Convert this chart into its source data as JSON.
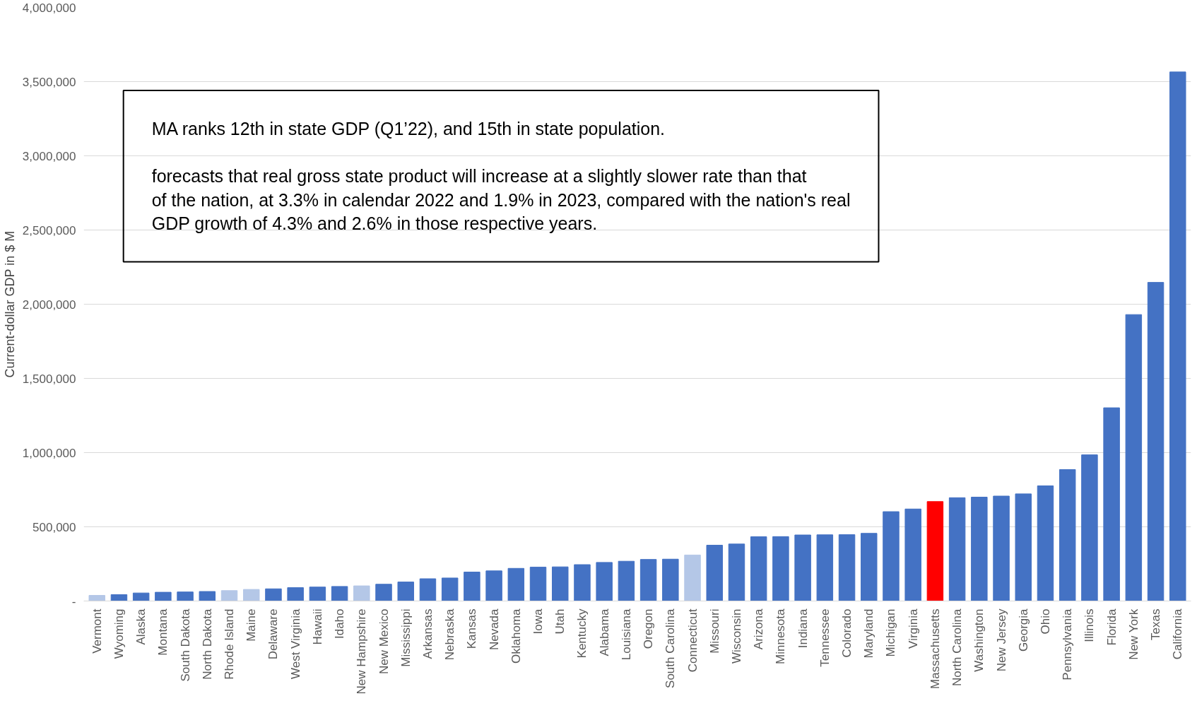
{
  "chart_data": {
    "type": "bar",
    "ylabel": "Current-dollar GDP in $ M",
    "categories": [
      "Vermont",
      "Wyoming",
      "Alaska",
      "Montana",
      "South Dakota",
      "North Dakota",
      "Rhode Island",
      "Maine",
      "Delaware",
      "West Virginia",
      "Hawaii",
      "Idaho",
      "New Hampshire",
      "New Mexico",
      "Mississippi",
      "Arkansas",
      "Nebraska",
      "Kansas",
      "Nevada",
      "Oklahoma",
      "Iowa",
      "Utah",
      "Kentucky",
      "Alabama",
      "Louisiana",
      "Oregon",
      "South Carolina",
      "Connecticut",
      "Missouri",
      "Wisconsin",
      "Arizona",
      "Minnesota",
      "Indiana",
      "Tennessee",
      "Colorado",
      "Maryland",
      "Michigan",
      "Virginia",
      "Massachusetts",
      "North Carolina",
      "Washington",
      "New Jersey",
      "Georgia",
      "Ohio",
      "Pennsylvania",
      "Illinois",
      "Florida",
      "New York",
      "Texas",
      "California"
    ],
    "values": [
      38000,
      43000,
      54000,
      59000,
      61000,
      64000,
      70000,
      78000,
      82000,
      90000,
      94000,
      98000,
      102000,
      113000,
      128000,
      150000,
      155000,
      195000,
      203000,
      220000,
      228000,
      230000,
      245000,
      260000,
      268000,
      280000,
      282000,
      310000,
      376000,
      384000,
      433000,
      434000,
      445000,
      446000,
      447000,
      456000,
      602000,
      620000,
      670000,
      696000,
      700000,
      707000,
      722000,
      776000,
      886000,
      985000,
      1302000,
      1930000,
      2147000,
      3565000
    ],
    "colors": [
      "#b4c7e7",
      "#4472c4",
      "#4472c4",
      "#4472c4",
      "#4472c4",
      "#4472c4",
      "#b4c7e7",
      "#b4c7e7",
      "#4472c4",
      "#4472c4",
      "#4472c4",
      "#4472c4",
      "#b4c7e7",
      "#4472c4",
      "#4472c4",
      "#4472c4",
      "#4472c4",
      "#4472c4",
      "#4472c4",
      "#4472c4",
      "#4472c4",
      "#4472c4",
      "#4472c4",
      "#4472c4",
      "#4472c4",
      "#4472c4",
      "#4472c4",
      "#b4c7e7",
      "#4472c4",
      "#4472c4",
      "#4472c4",
      "#4472c4",
      "#4472c4",
      "#4472c4",
      "#4472c4",
      "#4472c4",
      "#4472c4",
      "#4472c4",
      "#ff0000",
      "#4472c4",
      "#4472c4",
      "#4472c4",
      "#4472c4",
      "#4472c4",
      "#4472c4",
      "#4472c4",
      "#4472c4",
      "#4472c4",
      "#4472c4",
      "#4472c4"
    ],
    "ylim": [
      0,
      4000000
    ],
    "yticks": [
      {
        "value": 0,
        "label": "-"
      },
      {
        "value": 500000,
        "label": "500,000"
      },
      {
        "value": 1000000,
        "label": "1,000,000"
      },
      {
        "value": 1500000,
        "label": "1,500,000"
      },
      {
        "value": 2000000,
        "label": "2,000,000"
      },
      {
        "value": 2500000,
        "label": "2,500,000"
      },
      {
        "value": 3000000,
        "label": "3,000,000"
      },
      {
        "value": 3500000,
        "label": "3,500,000"
      },
      {
        "value": 4000000,
        "label": "4,000,000"
      }
    ],
    "grid": "y",
    "annotations": [
      "MA ranks 12th in state GDP (Q1’22), and 15th in state population.",
      "forecasts that real gross state product will increase at a slightly slower rate than that of the nation, at 3.3% in calendar 2022 and 1.9% in 2023, compared with the nation's real GDP growth of 4.3% and 2.6% in those respective years."
    ]
  }
}
